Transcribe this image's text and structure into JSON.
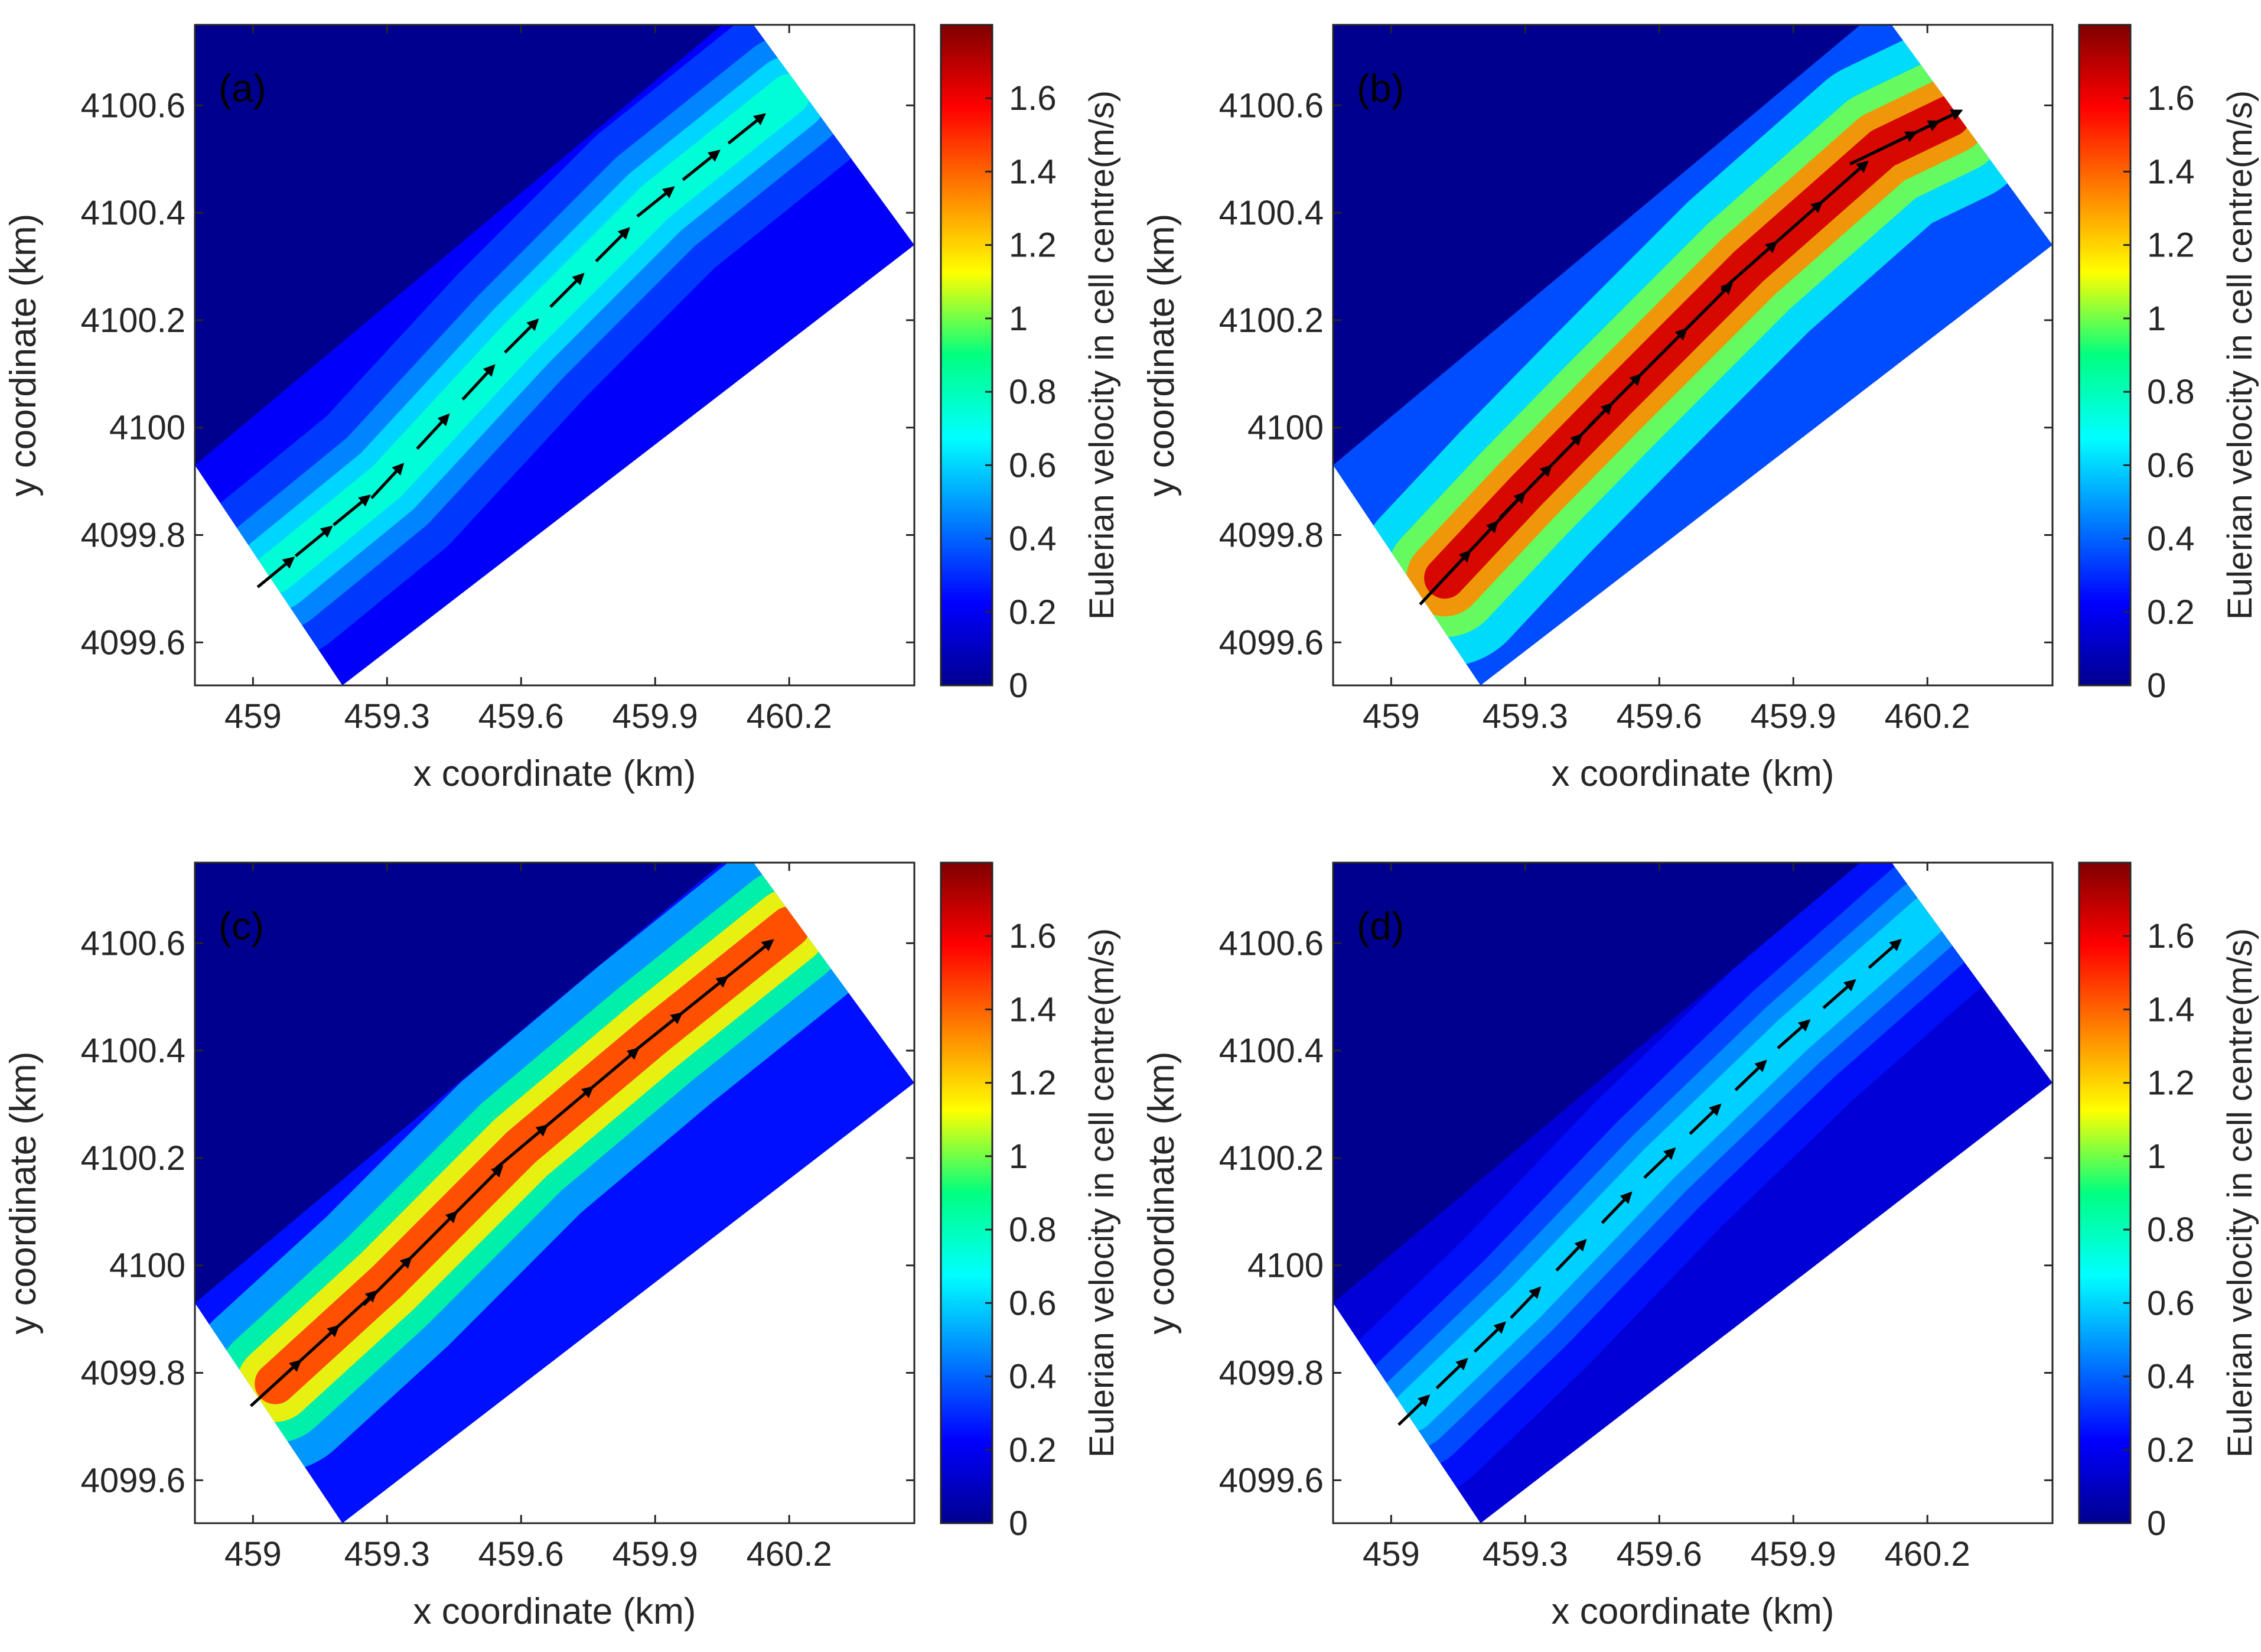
{
  "chart_data": [
    {
      "type": "heatmap",
      "panel_label": "(a)",
      "xlabel": "x coordinate (km)",
      "ylabel": "y coordinate (km)",
      "xlim": [
        458.87,
        460.48
      ],
      "ylim": [
        4099.52,
        4100.75
      ],
      "xticks": [
        "459",
        "459.3",
        "459.6",
        "459.9",
        "460.2"
      ],
      "xtick_values": [
        459,
        459.3,
        459.6,
        459.9,
        460.2
      ],
      "yticks": [
        "4099.6",
        "4099.8",
        "4100",
        "4100.2",
        "4100.4",
        "4100.6"
      ],
      "ytick_values": [
        4099.6,
        4099.8,
        4100.0,
        4100.2,
        4100.4,
        4100.6
      ],
      "colorbar": {
        "label": "Eulerian velocity in cell centre(m/s)",
        "range": [
          0,
          1.8
        ],
        "ticks": [
          "0",
          "0.2",
          "0.4",
          "0.6",
          "0.8",
          "1",
          "1.2",
          "1.4",
          "1.6"
        ],
        "tick_values": [
          0,
          0.2,
          0.4,
          0.6,
          0.8,
          1.0,
          1.2,
          1.4,
          1.6
        ]
      },
      "jet_peak_speed_ms": 0.75,
      "jet_axis": [
        [
          459.05,
          4099.73
        ],
        [
          459.3,
          4099.9
        ],
        [
          459.6,
          4100.17
        ],
        [
          459.9,
          4100.42
        ],
        [
          460.2,
          4100.62
        ]
      ]
    },
    {
      "type": "heatmap",
      "panel_label": "(b)",
      "xlabel": "x coordinate (km)",
      "ylabel": "y coordinate (km)",
      "xlim": [
        458.87,
        460.48
      ],
      "ylim": [
        4099.52,
        4100.75
      ],
      "xticks": [
        "459",
        "459.3",
        "459.6",
        "459.9",
        "460.2"
      ],
      "xtick_values": [
        459,
        459.3,
        459.6,
        459.9,
        460.2
      ],
      "yticks": [
        "4099.6",
        "4099.8",
        "4100",
        "4100.2",
        "4100.4",
        "4100.6"
      ],
      "ytick_values": [
        4099.6,
        4099.8,
        4100.0,
        4100.2,
        4100.4,
        4100.6
      ],
      "colorbar": {
        "label": "Eulerian velocity in cell centre(m/s)",
        "range": [
          0,
          1.8
        ],
        "ticks": [
          "0",
          "0.2",
          "0.4",
          "0.6",
          "0.8",
          "1",
          "1.2",
          "1.4",
          "1.6"
        ],
        "tick_values": [
          0,
          0.2,
          0.4,
          0.6,
          0.8,
          1.0,
          1.2,
          1.4,
          1.6
        ]
      },
      "jet_peak_speed_ms": 1.65,
      "jet_axis": [
        [
          459.12,
          4099.72
        ],
        [
          459.3,
          4099.88
        ],
        [
          459.5,
          4100.05
        ],
        [
          459.8,
          4100.3
        ],
        [
          460.1,
          4100.52
        ],
        [
          460.25,
          4100.58
        ]
      ]
    },
    {
      "type": "heatmap",
      "panel_label": "(c)",
      "xlabel": "x coordinate (km)",
      "ylabel": "y coordinate (km)",
      "xlim": [
        458.87,
        460.48
      ],
      "ylim": [
        4099.52,
        4100.75
      ],
      "xticks": [
        "459",
        "459.3",
        "459.6",
        "459.9",
        "460.2"
      ],
      "xtick_values": [
        459,
        459.3,
        459.6,
        459.9,
        460.2
      ],
      "yticks": [
        "4099.6",
        "4099.8",
        "4100",
        "4100.2",
        "4100.4",
        "4100.6"
      ],
      "ytick_values": [
        4099.6,
        4099.8,
        4100.0,
        4100.2,
        4100.4,
        4100.6
      ],
      "colorbar": {
        "label": "Eulerian velocity in cell centre(m/s)",
        "range": [
          0,
          1.8
        ],
        "ticks": [
          "0",
          "0.2",
          "0.4",
          "0.6",
          "0.8",
          "1",
          "1.2",
          "1.4",
          "1.6"
        ],
        "tick_values": [
          0,
          0.2,
          0.4,
          0.6,
          0.8,
          1.0,
          1.2,
          1.4,
          1.6
        ]
      },
      "jet_peak_speed_ms": 1.45,
      "jet_axis": [
        [
          459.05,
          4099.78
        ],
        [
          459.3,
          4099.97
        ],
        [
          459.6,
          4100.22
        ],
        [
          459.9,
          4100.43
        ],
        [
          460.2,
          4100.63
        ]
      ]
    },
    {
      "type": "heatmap",
      "panel_label": "(d)",
      "xlabel": "x coordinate (km)",
      "ylabel": "y coordinate (km)",
      "xlim": [
        458.87,
        460.48
      ],
      "ylim": [
        4099.52,
        4100.75
      ],
      "xticks": [
        "459",
        "459.3",
        "459.6",
        "459.9",
        "460.2"
      ],
      "xtick_values": [
        459,
        459.3,
        459.6,
        459.9,
        460.2
      ],
      "yticks": [
        "4099.6",
        "4099.8",
        "4100",
        "4100.2",
        "4100.4",
        "4100.6"
      ],
      "ytick_values": [
        4099.6,
        4099.8,
        4100.0,
        4100.2,
        4100.4,
        4100.6
      ],
      "colorbar": {
        "label": "Eulerian velocity in cell centre(m/s)",
        "range": [
          0,
          1.8
        ],
        "ticks": [
          "0",
          "0.2",
          "0.4",
          "0.6",
          "0.8",
          "1",
          "1.2",
          "1.4",
          "1.6"
        ],
        "tick_values": [
          0,
          0.2,
          0.4,
          0.6,
          0.8,
          1.0,
          1.2,
          1.4,
          1.6
        ]
      },
      "jet_peak_speed_ms": 0.6,
      "jet_axis": [
        [
          459.05,
          4099.73
        ],
        [
          459.3,
          4099.93
        ],
        [
          459.6,
          4100.19
        ],
        [
          459.9,
          4100.43
        ],
        [
          460.2,
          4100.65
        ]
      ]
    }
  ],
  "colors": {
    "land": "#00008f",
    "arrow": "#000000",
    "axis": "#262626"
  }
}
